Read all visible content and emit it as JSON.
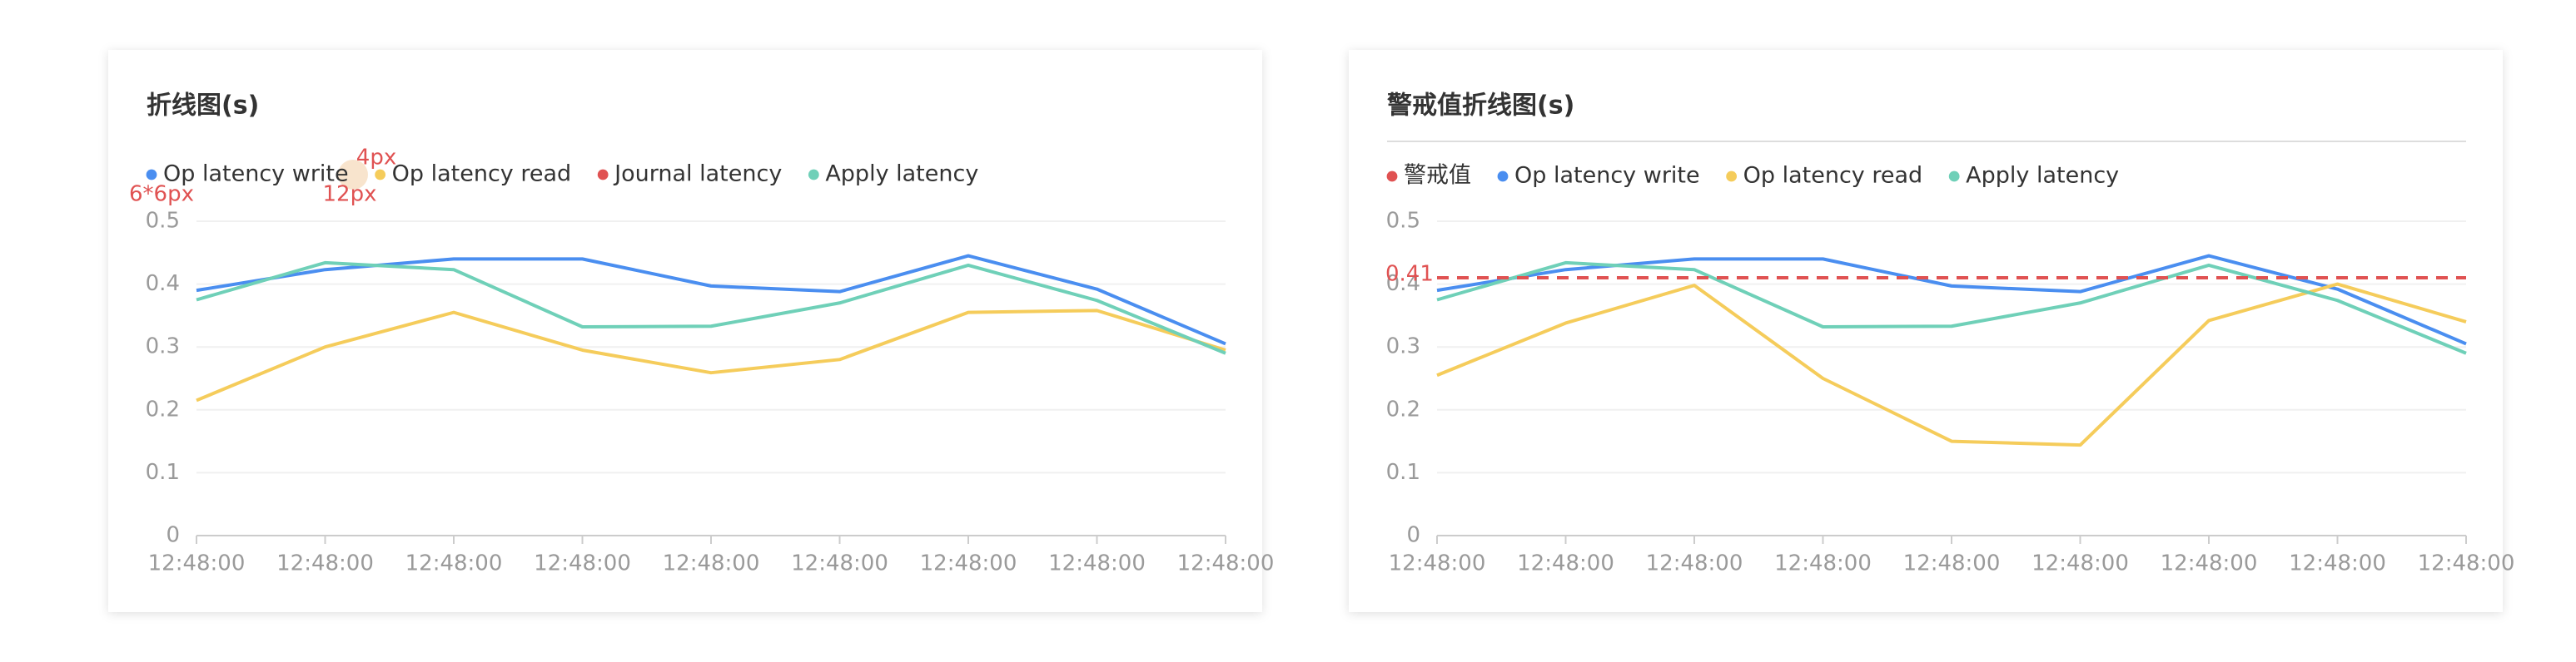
{
  "chart_data": [
    {
      "type": "line",
      "title": "折线图(s)",
      "categories": [
        "12:48:00",
        "12:48:00",
        "12:48:00",
        "12:48:00",
        "12:48:00",
        "12:48:00",
        "12:48:00",
        "12:48:00",
        "12:48:00"
      ],
      "series": [
        {
          "name": "Op latency write",
          "color": "#4a8ef0",
          "values": [
            0.39,
            0.423,
            0.44,
            0.44,
            0.397,
            0.388,
            0.445,
            0.392,
            0.305
          ]
        },
        {
          "name": "Op latency read",
          "color": "#f5cc5b",
          "values": [
            0.215,
            0.3,
            0.355,
            0.295,
            0.259,
            0.28,
            0.355,
            0.358,
            0.295
          ]
        },
        {
          "name": "Journal latency",
          "color": "#e05252",
          "values": [
            null,
            null,
            null,
            null,
            null,
            null,
            null,
            null,
            null
          ]
        },
        {
          "name": "Apply latency",
          "color": "#6fd0b8",
          "values": [
            0.375,
            0.434,
            0.423,
            0.332,
            0.333,
            0.37,
            0.43,
            0.374,
            0.29
          ]
        }
      ],
      "ylim": [
        0,
        0.5
      ],
      "yticks": [
        0,
        0.1,
        0.2,
        0.3,
        0.4,
        0.5
      ],
      "grid": true,
      "annotations": [
        "4px",
        "6*6px",
        "12px"
      ]
    },
    {
      "type": "line",
      "title": "警戒值折线图(s)",
      "categories": [
        "12:48:00",
        "12:48:00",
        "12:48:00",
        "12:48:00",
        "12:48:00",
        "12:48:00",
        "12:48:00",
        "12:48:00",
        "12:48:00"
      ],
      "threshold": {
        "name": "警戒值",
        "value": 0.41,
        "color": "#e05252"
      },
      "series": [
        {
          "name": "Op latency write",
          "color": "#4a8ef0",
          "values": [
            0.39,
            0.423,
            0.44,
            0.44,
            0.397,
            0.388,
            0.445,
            0.392,
            0.305
          ]
        },
        {
          "name": "Op latency read",
          "color": "#f5cc5b",
          "values": [
            0.255,
            0.338,
            0.398,
            0.25,
            0.15,
            0.144,
            0.342,
            0.4,
            0.34
          ]
        },
        {
          "name": "Apply latency",
          "color": "#6fd0b8",
          "values": [
            0.375,
            0.434,
            0.423,
            0.332,
            0.333,
            0.37,
            0.43,
            0.374,
            0.29
          ]
        }
      ],
      "ylim": [
        0,
        0.5
      ],
      "yticks": [
        0,
        0.1,
        0.2,
        0.3,
        0.4,
        0.5
      ],
      "grid": true
    }
  ]
}
